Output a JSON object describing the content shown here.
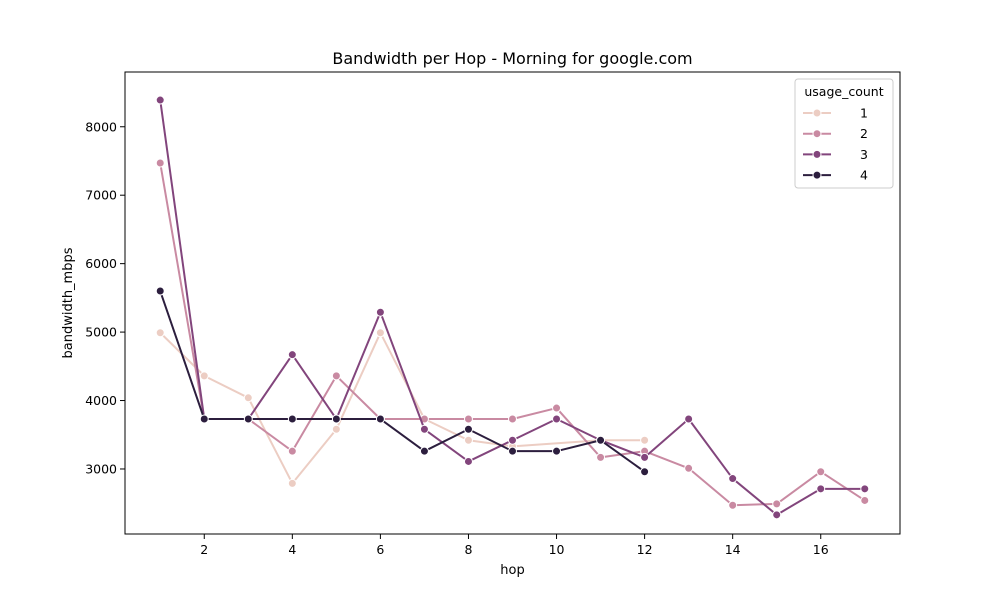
{
  "chart_data": {
    "type": "line",
    "title": "Bandwidth per Hop - Morning for google.com",
    "xlabel": "hop",
    "ylabel": "bandwidth_mbps",
    "xlim": [
      0.2,
      17.8
    ],
    "ylim": [
      2050,
      8800
    ],
    "xticks": [
      2,
      4,
      6,
      8,
      10,
      12,
      14,
      16
    ],
    "yticks": [
      3000,
      4000,
      5000,
      6000,
      7000,
      8000
    ],
    "grid": false,
    "legend": {
      "title": "usage_count",
      "placement": "top-right"
    },
    "series": [
      {
        "name": "1",
        "color": "#eccdc3",
        "points": [
          [
            1,
            4990
          ],
          [
            2,
            4360
          ],
          [
            3,
            4040
          ],
          [
            4,
            2790
          ],
          [
            5,
            3580
          ],
          [
            6,
            4990
          ],
          [
            7,
            3730
          ],
          [
            8,
            3420
          ],
          [
            9,
            3330
          ],
          [
            11,
            3420
          ],
          [
            12,
            3420
          ]
        ]
      },
      {
        "name": "2",
        "color": "#c98aa2",
        "points": [
          [
            1,
            7470
          ],
          [
            2,
            3730
          ],
          [
            3,
            3730
          ],
          [
            4,
            3260
          ],
          [
            5,
            4360
          ],
          [
            6,
            3730
          ],
          [
            7,
            3730
          ],
          [
            8,
            3730
          ],
          [
            9,
            3730
          ],
          [
            10,
            3890
          ],
          [
            11,
            3170
          ],
          [
            12,
            3260
          ],
          [
            13,
            3010
          ],
          [
            14,
            2470
          ],
          [
            15,
            2490
          ],
          [
            16,
            2960
          ],
          [
            17,
            2540
          ]
        ]
      },
      {
        "name": "3",
        "color": "#82457c",
        "points": [
          [
            1,
            8390
          ],
          [
            2,
            3730
          ],
          [
            3,
            3730
          ],
          [
            4,
            4670
          ],
          [
            5,
            3730
          ],
          [
            6,
            5290
          ],
          [
            7,
            3580
          ],
          [
            8,
            3110
          ],
          [
            9,
            3420
          ],
          [
            10,
            3730
          ],
          [
            11,
            3420
          ],
          [
            12,
            3170
          ],
          [
            13,
            3730
          ],
          [
            14,
            2860
          ],
          [
            15,
            2330
          ],
          [
            16,
            2710
          ],
          [
            17,
            2710
          ]
        ]
      },
      {
        "name": "4",
        "color": "#2c1e3e",
        "points": [
          [
            1,
            5600
          ],
          [
            2,
            3730
          ],
          [
            3,
            3730
          ],
          [
            4,
            3730
          ],
          [
            5,
            3730
          ],
          [
            6,
            3730
          ],
          [
            7,
            3260
          ],
          [
            8,
            3580
          ],
          [
            9,
            3260
          ],
          [
            10,
            3260
          ],
          [
            11,
            3420
          ],
          [
            12,
            2960
          ]
        ]
      }
    ]
  }
}
